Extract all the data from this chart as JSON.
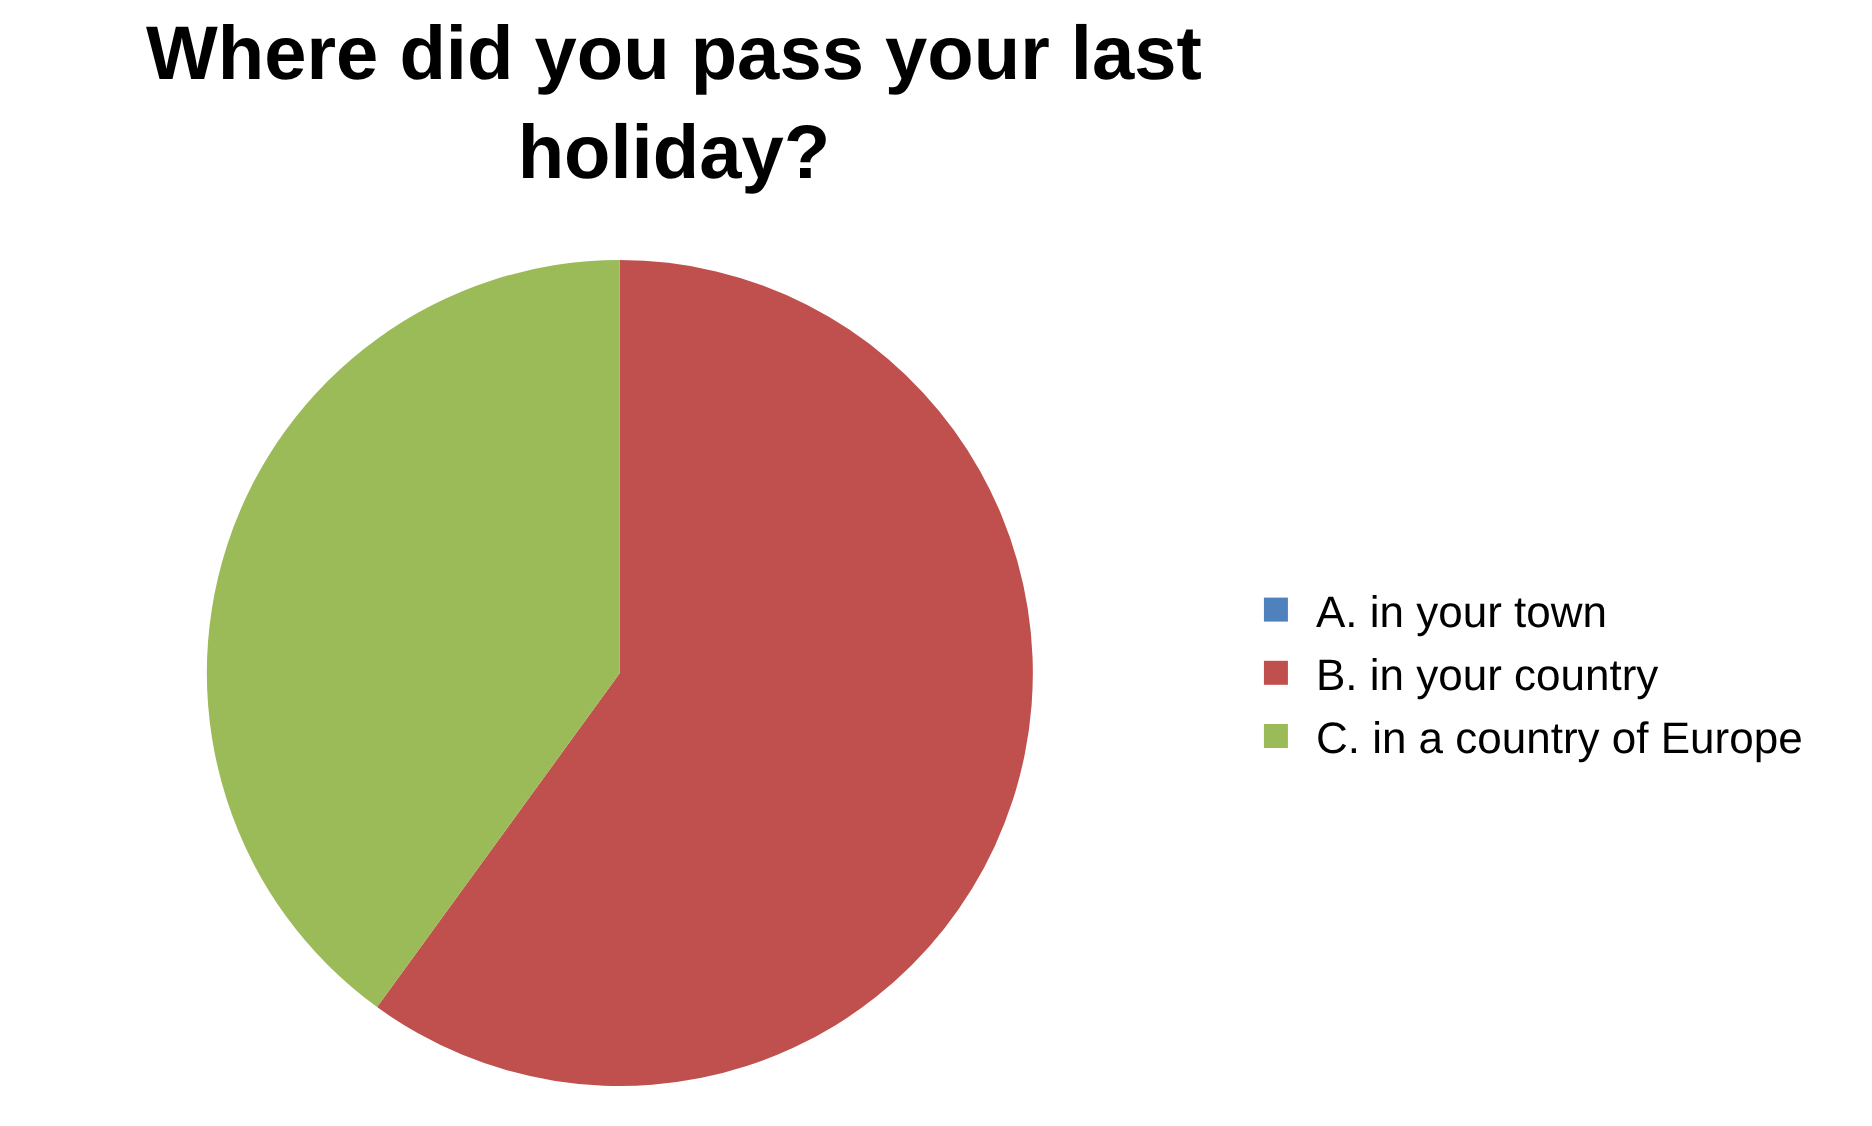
{
  "chart_data": {
    "type": "pie",
    "title": "Where did you pass your last holiday?",
    "categories": [
      "A. in your town",
      "B. in your country",
      "C. in a country of Europe"
    ],
    "values": [
      0,
      60,
      40
    ],
    "colors": [
      "#4f81bd",
      "#c0504d",
      "#9bbb59"
    ],
    "legend": "right"
  }
}
